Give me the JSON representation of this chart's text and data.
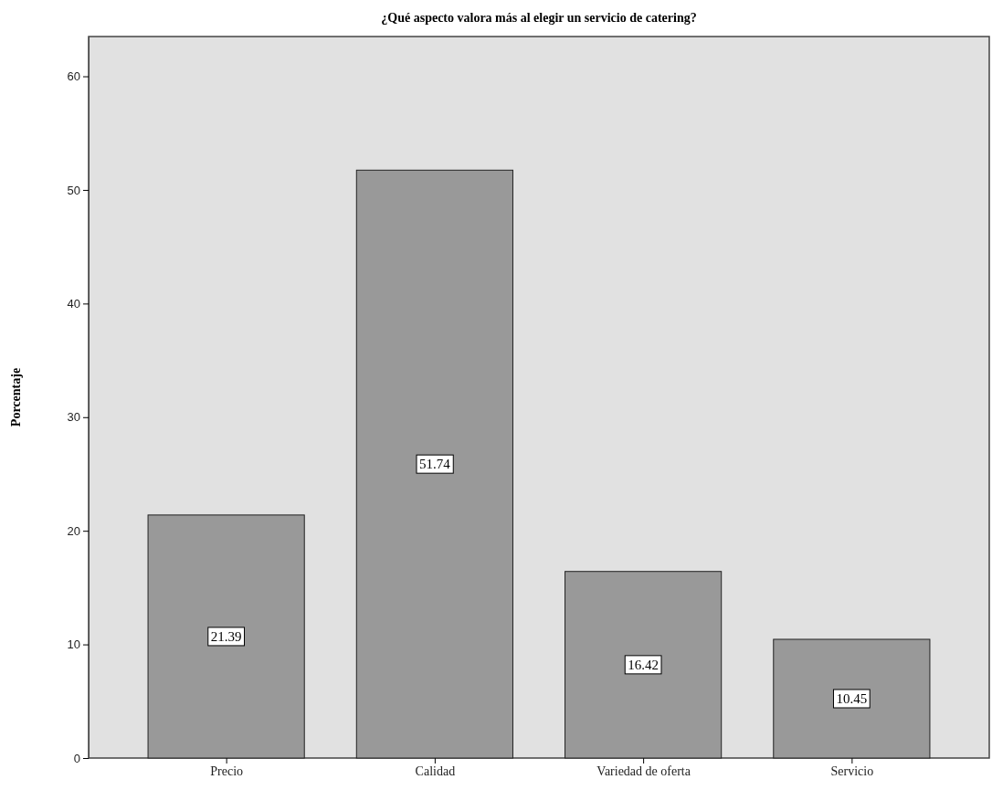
{
  "chart_data": {
    "type": "bar",
    "title": "¿Qué aspecto valora más al elegir un servicio de catering?",
    "ylabel": "Porcentaje",
    "categories": [
      "Precio",
      "Calidad",
      "Variedad de oferta",
      "Servicio"
    ],
    "values": [
      21.39,
      51.74,
      16.42,
      10.45
    ],
    "color": "#999999",
    "ylim": [
      0,
      63.5
    ],
    "yticks": [
      0,
      10,
      20,
      30,
      40,
      50,
      60
    ],
    "data_labels": true
  }
}
